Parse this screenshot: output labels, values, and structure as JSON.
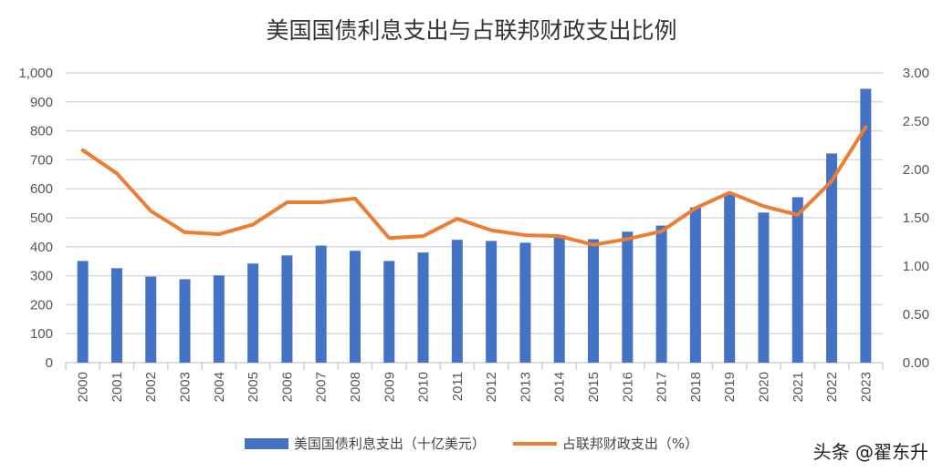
{
  "chart_data": {
    "type": "bar+line",
    "title": "美国国债利息支出与占联邦财政支出比例",
    "categories": [
      "2000",
      "2001",
      "2002",
      "2003",
      "2004",
      "2005",
      "2006",
      "2007",
      "2008",
      "2009",
      "2010",
      "2011",
      "2012",
      "2013",
      "2014",
      "2015",
      "2016",
      "2017",
      "2018",
      "2019",
      "2020",
      "2021",
      "2022",
      "2023"
    ],
    "series": [
      {
        "name": "美国国债利息支出（十亿美元）",
        "type": "bar",
        "axis": "left",
        "color": "#4472C4",
        "values": [
          351,
          326,
          297,
          288,
          301,
          342,
          370,
          404,
          386,
          351,
          380,
          424,
          420,
          414,
          440,
          426,
          452,
          473,
          536,
          580,
          518,
          571,
          722,
          945
        ]
      },
      {
        "name": "占联邦财政支出（%）",
        "type": "line",
        "axis": "right",
        "color": "#ED7D31",
        "values": [
          2.2,
          1.96,
          1.57,
          1.35,
          1.33,
          1.43,
          1.66,
          1.66,
          1.7,
          1.29,
          1.31,
          1.49,
          1.37,
          1.32,
          1.31,
          1.22,
          1.28,
          1.36,
          1.6,
          1.76,
          1.62,
          1.53,
          1.88,
          2.44
        ]
      }
    ],
    "y_left": {
      "range": [
        0,
        1000
      ],
      "ticks": [
        "0",
        "100",
        "200",
        "300",
        "400",
        "500",
        "600",
        "700",
        "800",
        "900",
        "1,000"
      ]
    },
    "y_right": {
      "range": [
        0,
        3
      ],
      "ticks": [
        "0.00",
        "0.50",
        "1.00",
        "1.50",
        "2.00",
        "2.50",
        "3.00"
      ]
    },
    "grid": true,
    "legend": "bottom"
  },
  "watermark": "头条 @翟东升"
}
